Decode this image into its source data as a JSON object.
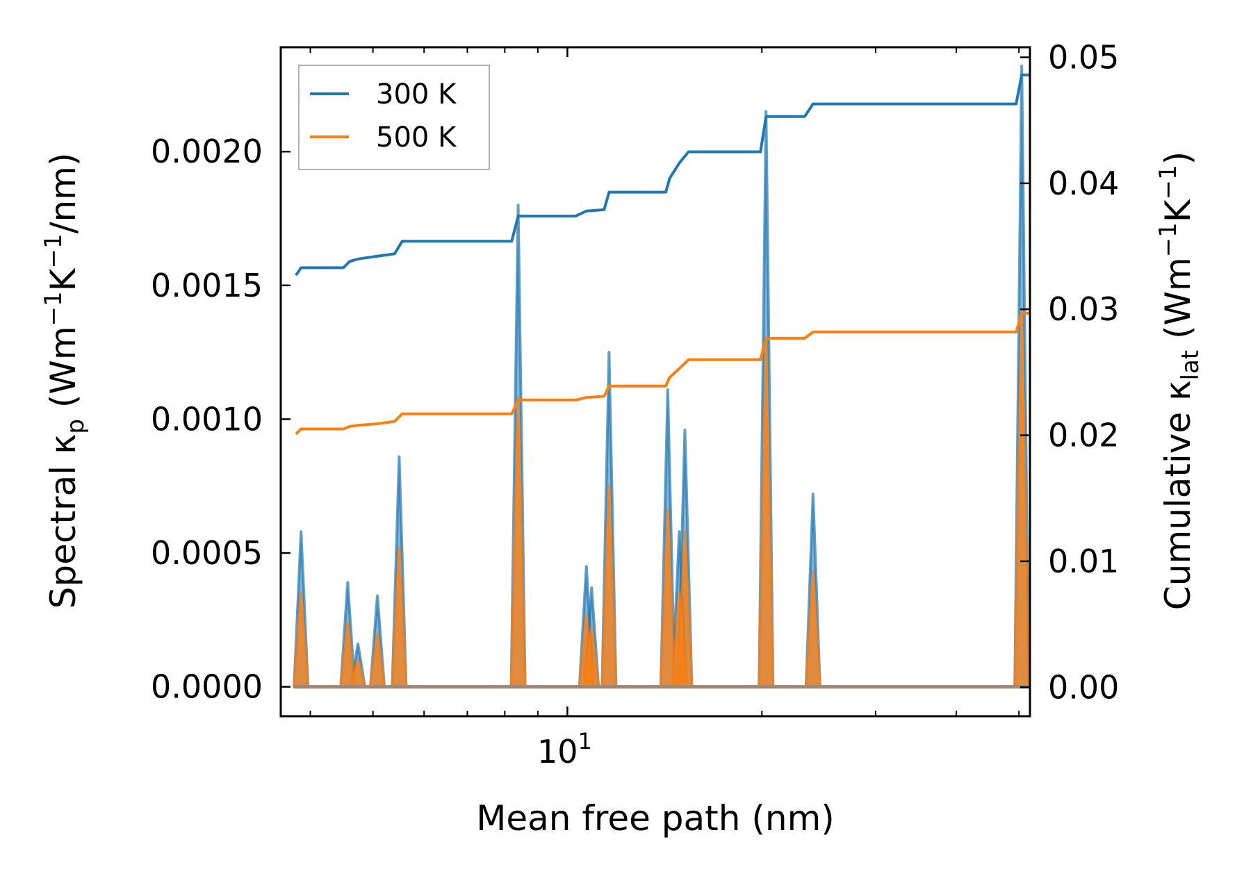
{
  "chart_data": {
    "type": "line",
    "xscale": "log",
    "xlim": [
      3.6,
      52
    ],
    "xlabel": "Mean free path (nm)",
    "x_tick_label": {
      "base": "10",
      "exp": "1",
      "value": 10
    },
    "x_minor_ticks": [
      4,
      5,
      6,
      7,
      8,
      9,
      20,
      30,
      40,
      50
    ],
    "left_axis": {
      "label_parts": [
        "Spectral κ",
        "p",
        " (Wm",
        "−1",
        "K",
        "−1",
        "/nm)"
      ],
      "ylim": [
        -0.00011,
        0.00239
      ],
      "ticks": [
        0.0,
        0.0005,
        0.001,
        0.0015,
        0.002
      ],
      "tick_labels": [
        "0.0000",
        "0.0005",
        "0.0010",
        "0.0015",
        "0.0020"
      ]
    },
    "right_axis": {
      "label_parts": [
        "Cumulative κ",
        "lat",
        " (Wm",
        "−1",
        "K",
        "−1",
        ")"
      ],
      "ylim": [
        -0.0023,
        0.0508
      ],
      "ticks": [
        0.0,
        0.01,
        0.02,
        0.03,
        0.04,
        0.05
      ],
      "tick_labels": [
        "0.00",
        "0.01",
        "0.02",
        "0.03",
        "0.04",
        "0.05"
      ]
    },
    "legend": {
      "position": "top-left",
      "entries": [
        {
          "label": "300 K",
          "color": "#1f77b4"
        },
        {
          "label": "500 K",
          "color": "#ff7f0e"
        }
      ]
    },
    "spectral_series": [
      {
        "name": "300 K",
        "color": "#1f77b4",
        "peaks": [
          {
            "x": 3.87,
            "y": 0.00058
          },
          {
            "x": 4.57,
            "y": 0.00039
          },
          {
            "x": 4.74,
            "y": 0.00016
          },
          {
            "x": 5.08,
            "y": 0.00034
          },
          {
            "x": 5.49,
            "y": 0.00086
          },
          {
            "x": 8.39,
            "y": 0.0018
          },
          {
            "x": 10.7,
            "y": 0.00045
          },
          {
            "x": 10.9,
            "y": 0.00037
          },
          {
            "x": 11.6,
            "y": 0.00125
          },
          {
            "x": 14.3,
            "y": 0.00111
          },
          {
            "x": 14.9,
            "y": 0.00058
          },
          {
            "x": 15.2,
            "y": 0.00096
          },
          {
            "x": 20.3,
            "y": 0.00215
          },
          {
            "x": 24.0,
            "y": 0.00072
          },
          {
            "x": 50.5,
            "y": 0.00232
          }
        ]
      },
      {
        "name": "500 K",
        "color": "#ff7f0e",
        "peaks": [
          {
            "x": 3.87,
            "y": 0.00035
          },
          {
            "x": 4.57,
            "y": 0.00024
          },
          {
            "x": 4.74,
            "y": 0.0001
          },
          {
            "x": 5.08,
            "y": 0.0002
          },
          {
            "x": 5.49,
            "y": 0.00052
          },
          {
            "x": 8.39,
            "y": 0.00108
          },
          {
            "x": 10.7,
            "y": 0.00027
          },
          {
            "x": 10.9,
            "y": 0.00022
          },
          {
            "x": 11.6,
            "y": 0.00075
          },
          {
            "x": 14.3,
            "y": 0.00066
          },
          {
            "x": 14.9,
            "y": 0.00035
          },
          {
            "x": 15.2,
            "y": 0.00058
          },
          {
            "x": 20.3,
            "y": 0.00128
          },
          {
            "x": 24.0,
            "y": 0.00043
          },
          {
            "x": 50.5,
            "y": 0.00139
          }
        ]
      }
    ],
    "cumulative_series": [
      {
        "name": "300 K",
        "color": "#1f77b4",
        "points": [
          [
            3.8,
            0.0327
          ],
          [
            3.87,
            0.0333
          ],
          [
            4.5,
            0.0333
          ],
          [
            4.6,
            0.0338
          ],
          [
            4.75,
            0.034
          ],
          [
            5.05,
            0.0342
          ],
          [
            5.4,
            0.0344
          ],
          [
            5.55,
            0.0354
          ],
          [
            8.2,
            0.0354
          ],
          [
            8.39,
            0.0374
          ],
          [
            10.3,
            0.0374
          ],
          [
            10.7,
            0.0378
          ],
          [
            11.4,
            0.0379
          ],
          [
            11.6,
            0.0393
          ],
          [
            14.2,
            0.0393
          ],
          [
            14.4,
            0.0404
          ],
          [
            14.9,
            0.0416
          ],
          [
            15.4,
            0.0425
          ],
          [
            19.9,
            0.0425
          ],
          [
            20.3,
            0.0453
          ],
          [
            23.3,
            0.0453
          ],
          [
            24.0,
            0.0463
          ],
          [
            49.5,
            0.0463
          ],
          [
            50.5,
            0.0486
          ],
          [
            52.0,
            0.0486
          ]
        ]
      },
      {
        "name": "500 K",
        "color": "#ff7f0e",
        "points": [
          [
            3.8,
            0.0201
          ],
          [
            3.87,
            0.0205
          ],
          [
            4.5,
            0.0205
          ],
          [
            4.6,
            0.0207
          ],
          [
            4.75,
            0.0208
          ],
          [
            5.05,
            0.0209
          ],
          [
            5.4,
            0.0211
          ],
          [
            5.55,
            0.0217
          ],
          [
            8.2,
            0.0217
          ],
          [
            8.39,
            0.0228
          ],
          [
            10.3,
            0.0228
          ],
          [
            10.7,
            0.023
          ],
          [
            11.4,
            0.0231
          ],
          [
            11.6,
            0.0239
          ],
          [
            14.2,
            0.0239
          ],
          [
            14.4,
            0.0246
          ],
          [
            14.9,
            0.0253
          ],
          [
            15.4,
            0.026
          ],
          [
            19.9,
            0.026
          ],
          [
            20.3,
            0.0277
          ],
          [
            23.3,
            0.0277
          ],
          [
            24.0,
            0.0282
          ],
          [
            49.5,
            0.0282
          ],
          [
            50.5,
            0.0297
          ],
          [
            52.0,
            0.0297
          ]
        ]
      }
    ]
  }
}
